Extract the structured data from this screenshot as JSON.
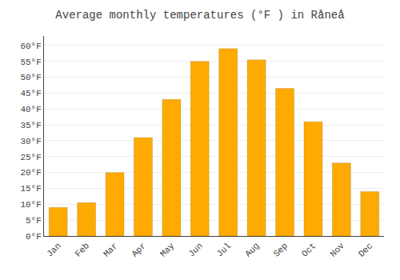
{
  "chart_data": {
    "type": "bar",
    "title": "Average monthly temperatures (°F ) in Råneå",
    "categories": [
      "Jan",
      "Feb",
      "Mar",
      "Apr",
      "May",
      "Jun",
      "Jul",
      "Aug",
      "Sep",
      "Oct",
      "Nov",
      "Dec"
    ],
    "values": [
      9,
      10.5,
      20,
      31,
      43,
      55,
      59,
      55.5,
      46.5,
      36,
      23,
      14
    ],
    "color": "#FFAA00",
    "ylim": [
      0,
      63
    ],
    "yticks": [
      {
        "value": 0,
        "label": "0°F"
      },
      {
        "value": 5,
        "label": "5°F"
      },
      {
        "value": 10,
        "label": "10°F"
      },
      {
        "value": 15,
        "label": "15°F"
      },
      {
        "value": 20,
        "label": "20°F"
      },
      {
        "value": 25,
        "label": "25°F"
      },
      {
        "value": 30,
        "label": "30°F"
      },
      {
        "value": 35,
        "label": "35°F"
      },
      {
        "value": 40,
        "label": "40°F"
      },
      {
        "value": 45,
        "label": "45°F"
      },
      {
        "value": 50,
        "label": "50°F"
      },
      {
        "value": 55,
        "label": "55°F"
      },
      {
        "value": 60,
        "label": "60°F"
      }
    ],
    "grid": true
  }
}
